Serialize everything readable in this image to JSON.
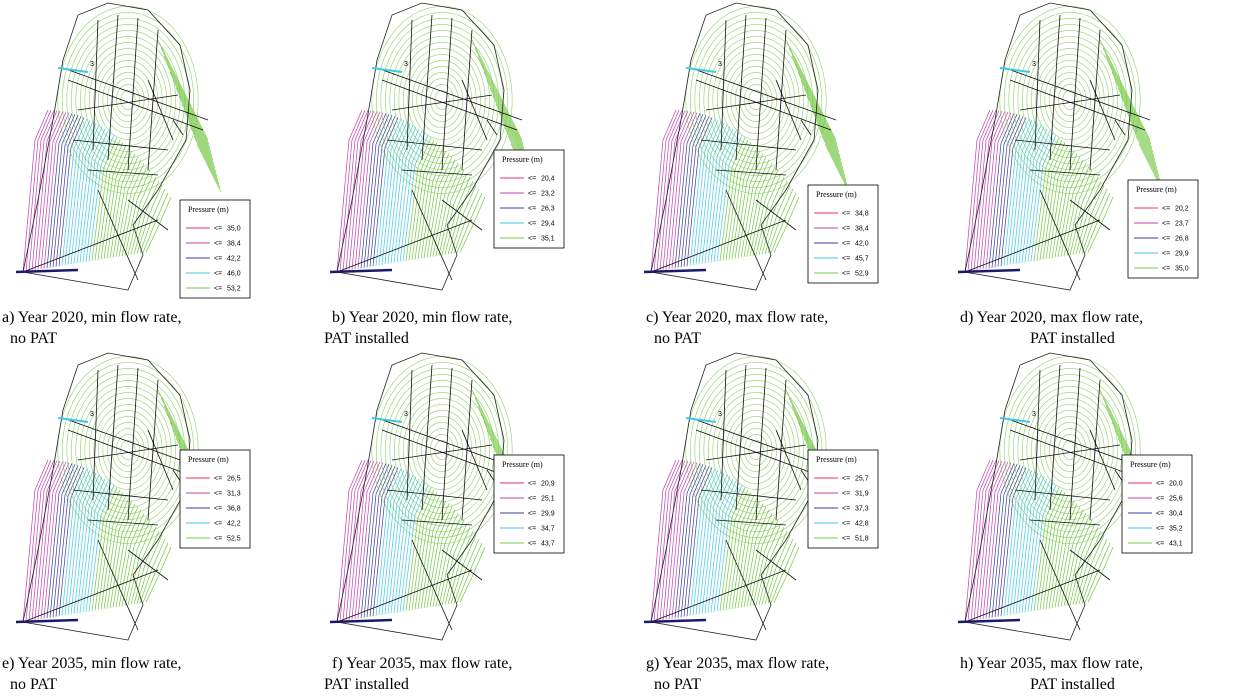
{
  "legend_colors": [
    "#e0306a",
    "#c040b0",
    "#3a3aa0",
    "#40c8e8",
    "#70c840"
  ],
  "panels": [
    {
      "caption": [
        "a)  Year 2020, min flow rate,",
        "no PAT"
      ],
      "map_label": "3",
      "legend": {
        "title": "Pressure (m)",
        "entries": [
          {
            "op": "<=",
            "value": "35,0"
          },
          {
            "op": "<=",
            "value": "38,4"
          },
          {
            "op": "<=",
            "value": "42,2"
          },
          {
            "op": "<=",
            "value": "46,0"
          },
          {
            "op": "<=",
            "value": "53,2"
          }
        ]
      }
    },
    {
      "caption": [
        "b)  Year 2020, min flow rate,",
        "PAT installed"
      ],
      "map_label": "3",
      "legend": {
        "title": "Pressure (m)",
        "entries": [
          {
            "op": "<=",
            "value": "20,4"
          },
          {
            "op": "<=",
            "value": "23,2"
          },
          {
            "op": "<=",
            "value": "26,3"
          },
          {
            "op": "<=",
            "value": "29,4"
          },
          {
            "op": "<=",
            "value": "35,1"
          }
        ]
      }
    },
    {
      "caption": [
        "c)  Year 2020, max flow rate,",
        "no PAT"
      ],
      "map_label": "3",
      "legend": {
        "title": "Pressure (m)",
        "entries": [
          {
            "op": "<=",
            "value": "34,8"
          },
          {
            "op": "<=",
            "value": "38,4"
          },
          {
            "op": "<=",
            "value": "42,0"
          },
          {
            "op": "<=",
            "value": "45,7"
          },
          {
            "op": "<=",
            "value": "52,9"
          }
        ]
      }
    },
    {
      "caption": [
        "d)  Year 2020, max flow rate,",
        "PAT installed"
      ],
      "map_label": "3",
      "legend": {
        "title": "Pressure (m)",
        "entries": [
          {
            "op": "<=",
            "value": "20,2"
          },
          {
            "op": "<=",
            "value": "23,7"
          },
          {
            "op": "<=",
            "value": "26,8"
          },
          {
            "op": "<=",
            "value": "29,9"
          },
          {
            "op": "<=",
            "value": "35,0"
          }
        ]
      }
    },
    {
      "caption": [
        "e)  Year 2035, min flow rate,",
        "no PAT"
      ],
      "map_label": "3",
      "legend": {
        "title": "Pressure (m)",
        "entries": [
          {
            "op": "<=",
            "value": "26,5"
          },
          {
            "op": "<=",
            "value": "31,3"
          },
          {
            "op": "<=",
            "value": "36,8"
          },
          {
            "op": "<=",
            "value": "42,2"
          },
          {
            "op": "<=",
            "value": "52,5"
          }
        ]
      }
    },
    {
      "caption": [
        "f)  Year 2035, max flow rate,",
        "PAT installed"
      ],
      "map_label": "3",
      "legend": {
        "title": "Pressure (m)",
        "entries": [
          {
            "op": "<=",
            "value": "20,9"
          },
          {
            "op": "<=",
            "value": "25,1"
          },
          {
            "op": "<=",
            "value": "29,9"
          },
          {
            "op": "<=",
            "value": "34,7"
          },
          {
            "op": "<=",
            "value": "43,7"
          }
        ]
      }
    },
    {
      "caption": [
        "g)  Year 2035, max flow rate,",
        "no PAT"
      ],
      "map_label": "3",
      "legend": {
        "title": "Pressure (m)",
        "entries": [
          {
            "op": "<=",
            "value": "25,7"
          },
          {
            "op": "<=",
            "value": "31,9"
          },
          {
            "op": "<=",
            "value": "37,3"
          },
          {
            "op": "<=",
            "value": "42,8"
          },
          {
            "op": "<=",
            "value": "51,8"
          }
        ]
      }
    },
    {
      "caption": [
        "h)  Year 2035, max flow rate,",
        "PAT installed"
      ],
      "map_label": "3",
      "legend": {
        "title": "Pressure (m)",
        "entries": [
          {
            "op": "<=",
            "value": "20,0"
          },
          {
            "op": "<=",
            "value": "25,6"
          },
          {
            "op": "<=",
            "value": "30,4"
          },
          {
            "op": "<=",
            "value": "35,2"
          },
          {
            "op": "<=",
            "value": "43,1"
          }
        ]
      }
    }
  ]
}
